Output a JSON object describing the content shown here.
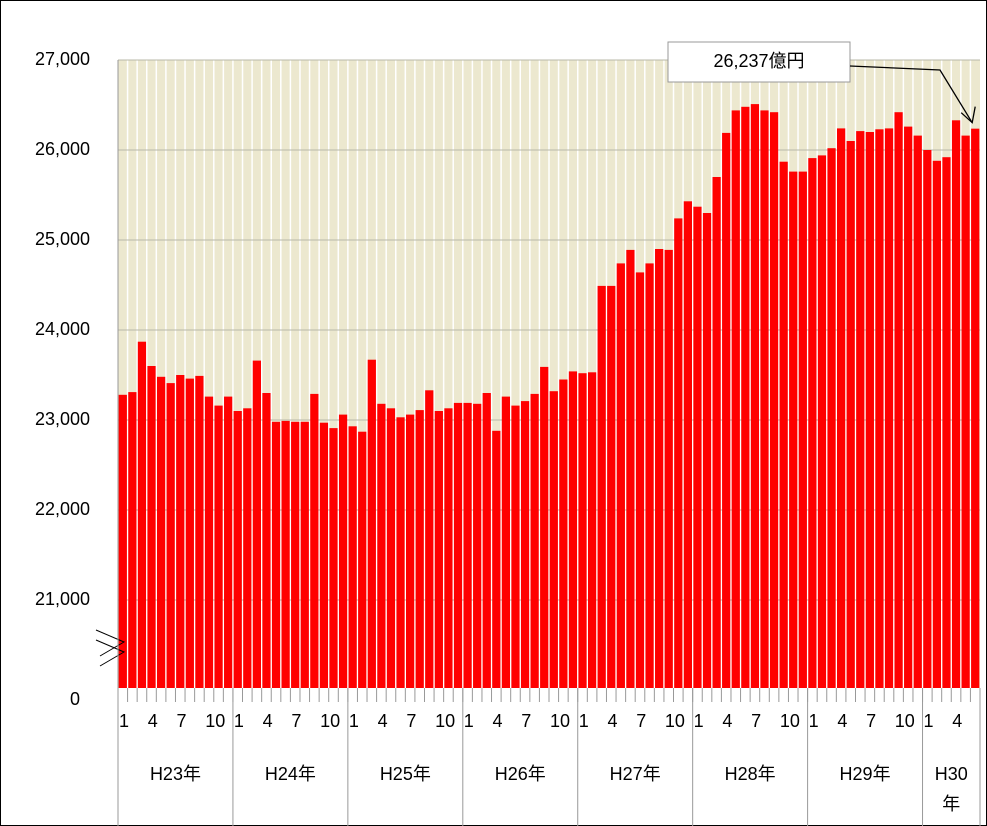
{
  "chart_data": {
    "type": "bar",
    "color": "#ff0000",
    "broken_axis": true,
    "grid": true,
    "ylim": [
      0,
      27000
    ],
    "yticks": [
      0,
      {
        "value": 21000,
        "label": "21,000"
      },
      {
        "value": 22000,
        "label": "22,000"
      },
      {
        "value": 23000,
        "label": "23,000"
      },
      {
        "value": 24000,
        "label": "24,000"
      },
      {
        "value": 25000,
        "label": "25,000"
      },
      {
        "value": 26000,
        "label": "26,000"
      },
      {
        "value": 27000,
        "label": "27,000"
      }
    ],
    "groups": [
      "H23年",
      "H24年",
      "H25年",
      "H26年",
      "H27年",
      "H28年",
      "H29年",
      "H30年"
    ],
    "categories": [
      "1",
      null,
      null,
      "4",
      null,
      null,
      "7",
      null,
      null,
      "10",
      null,
      null,
      "1",
      null,
      null,
      "4",
      null,
      null,
      "7",
      null,
      null,
      "10",
      null,
      null,
      "1",
      null,
      null,
      "4",
      null,
      null,
      "7",
      null,
      null,
      "10",
      null,
      null,
      "1",
      null,
      null,
      "4",
      null,
      null,
      "7",
      null,
      null,
      "10",
      null,
      null,
      "1",
      null,
      null,
      "4",
      null,
      null,
      "7",
      null,
      null,
      "10",
      null,
      null,
      "1",
      null,
      null,
      "4",
      null,
      null,
      "7",
      null,
      null,
      "10",
      null,
      null,
      "1",
      null,
      null,
      "4",
      null,
      null,
      "7",
      null,
      null,
      "10",
      null,
      null,
      "1",
      null,
      null,
      "4",
      null,
      null
    ],
    "values": [
      23280,
      23310,
      23870,
      23600,
      23480,
      23410,
      23500,
      23460,
      23490,
      23260,
      23160,
      23260,
      23100,
      23130,
      23660,
      23300,
      22980,
      22990,
      22980,
      22980,
      23290,
      22970,
      22910,
      23060,
      22930,
      22870,
      23670,
      23180,
      23130,
      23030,
      23060,
      23110,
      23330,
      23100,
      23130,
      23190,
      23190,
      23180,
      23300,
      22880,
      23260,
      23160,
      23210,
      23290,
      23590,
      23320,
      23450,
      23540,
      23520,
      23530,
      24490,
      24490,
      24740,
      24890,
      24640,
      24740,
      24900,
      24890,
      25240,
      25430,
      25370,
      25300,
      25700,
      26190,
      26440,
      26480,
      26510,
      26440,
      26420,
      25870,
      25760,
      25760,
      25910,
      25940,
      26020,
      26240,
      26100,
      26210,
      26200,
      26230,
      26240,
      26420,
      26260,
      26160,
      26000,
      25880,
      25920,
      26330,
      26160,
      26237
    ],
    "annotation": "26,237億円"
  }
}
